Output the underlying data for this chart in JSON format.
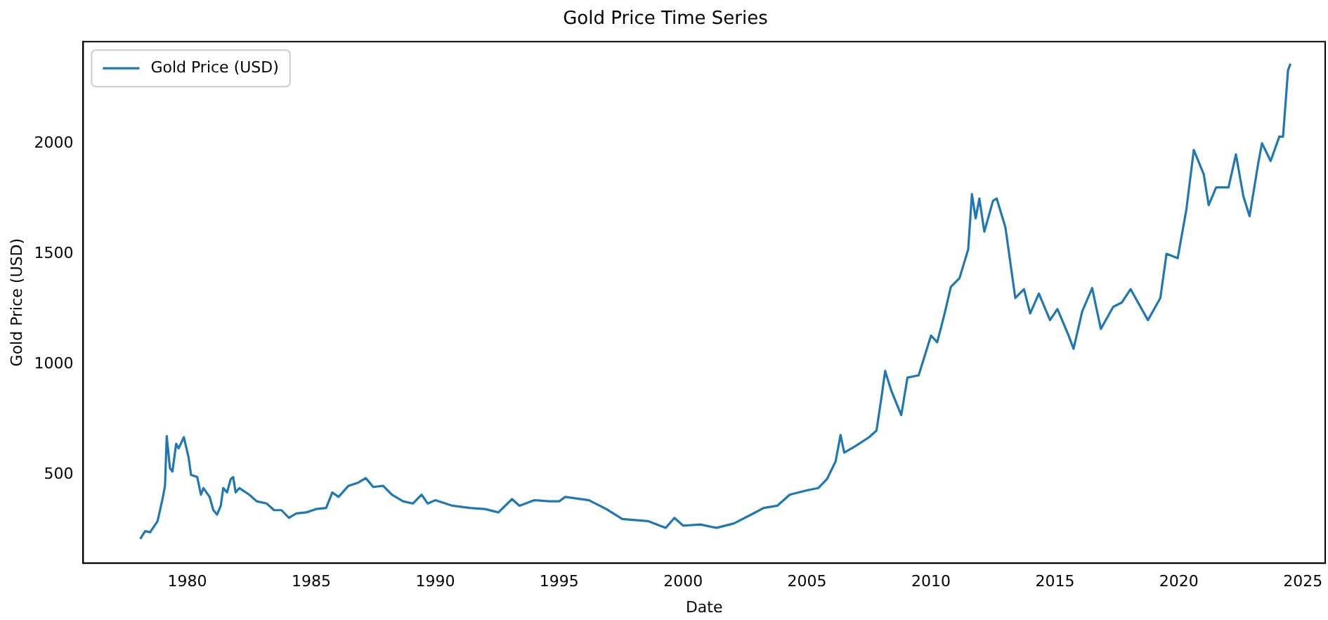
{
  "chart_data": {
    "type": "line",
    "title": "Gold Price Time Series",
    "xlabel": "Date",
    "ylabel": "Gold Price (USD)",
    "x": [
      1978.1,
      1978.3,
      1978.5,
      1978.8,
      1979.0,
      1979.1,
      1979.17,
      1979.3,
      1979.4,
      1979.55,
      1979.65,
      1979.86,
      1980.05,
      1980.15,
      1980.4,
      1980.55,
      1980.65,
      1980.9,
      1981.05,
      1981.2,
      1981.35,
      1981.45,
      1981.6,
      1981.75,
      1981.85,
      1981.95,
      1982.1,
      1982.5,
      1982.8,
      1983.2,
      1983.5,
      1983.8,
      1984.1,
      1984.4,
      1984.8,
      1985.2,
      1985.6,
      1985.85,
      1986.1,
      1986.5,
      1986.9,
      1987.2,
      1987.5,
      1987.9,
      1988.25,
      1988.7,
      1989.1,
      1989.45,
      1989.7,
      1990.0,
      1990.7,
      1991.4,
      1992.0,
      1992.55,
      1993.1,
      1993.4,
      1994.0,
      1994.6,
      1995.0,
      1995.25,
      1996.2,
      1996.9,
      1997.55,
      1998.6,
      1999.3,
      1999.65,
      2000.0,
      2000.7,
      2001.35,
      2002.05,
      2002.75,
      2003.25,
      2003.8,
      2004.3,
      2005.0,
      2005.45,
      2005.8,
      2006.15,
      2006.35,
      2006.5,
      2006.95,
      2007.5,
      2007.8,
      2008.0,
      2008.15,
      2008.4,
      2008.8,
      2009.05,
      2009.5,
      2010.0,
      2010.25,
      2010.55,
      2010.8,
      2011.15,
      2011.5,
      2011.65,
      2011.8,
      2011.95,
      2012.15,
      2012.5,
      2012.65,
      2013.0,
      2013.4,
      2013.75,
      2014.0,
      2014.35,
      2014.8,
      2015.1,
      2015.55,
      2015.75,
      2016.1,
      2016.5,
      2016.85,
      2017.35,
      2017.7,
      2018.05,
      2018.4,
      2018.75,
      2019.25,
      2019.5,
      2019.95,
      2020.3,
      2020.6,
      2021.0,
      2021.2,
      2021.5,
      2022.0,
      2022.3,
      2022.6,
      2022.85,
      2023.2,
      2023.35,
      2023.7,
      2024.05,
      2024.2,
      2024.4,
      2024.5
    ],
    "series": [
      {
        "name": "Gold Price (USD)",
        "color": "#1f77b4",
        "values": [
          210,
          245,
          240,
          290,
          390,
          450,
          675,
          530,
          515,
          640,
          620,
          670,
          580,
          500,
          490,
          410,
          440,
          400,
          340,
          320,
          360,
          440,
          420,
          480,
          490,
          420,
          440,
          410,
          380,
          370,
          340,
          340,
          305,
          325,
          330,
          345,
          350,
          420,
          400,
          450,
          465,
          485,
          445,
          450,
          410,
          380,
          370,
          410,
          370,
          385,
          360,
          350,
          345,
          330,
          390,
          360,
          385,
          380,
          380,
          400,
          385,
          345,
          300,
          290,
          260,
          305,
          270,
          275,
          260,
          280,
          320,
          350,
          360,
          410,
          430,
          440,
          480,
          560,
          680,
          600,
          630,
          670,
          700,
          850,
          970,
          880,
          770,
          940,
          950,
          1130,
          1100,
          1230,
          1350,
          1390,
          1520,
          1770,
          1660,
          1750,
          1600,
          1740,
          1750,
          1620,
          1300,
          1340,
          1230,
          1320,
          1200,
          1250,
          1130,
          1070,
          1240,
          1345,
          1160,
          1260,
          1280,
          1340,
          1270,
          1200,
          1300,
          1500,
          1480,
          1700,
          1970,
          1860,
          1720,
          1800,
          1800,
          1950,
          1760,
          1670,
          1910,
          2000,
          1920,
          2030,
          2030,
          2330,
          2360
        ]
      }
    ],
    "xlim": [
      1975.8,
      2025.9
    ],
    "xticks": [
      1980,
      1985,
      1990,
      1995,
      2000,
      2005,
      2010,
      2015,
      2020,
      2025
    ],
    "ylim": [
      100,
      2460
    ],
    "yticks": [
      500,
      1000,
      1500,
      2000
    ],
    "grid": false,
    "legend": "top left",
    "marker": "none",
    "line_style": "solid"
  }
}
